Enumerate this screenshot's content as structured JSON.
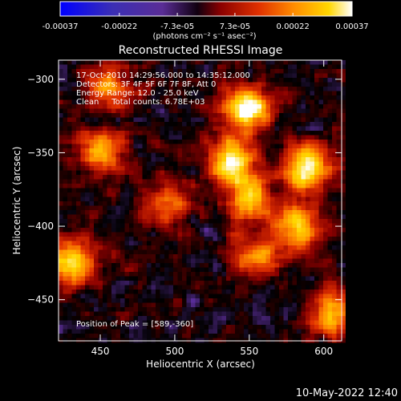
{
  "chart_data": {
    "type": "heatmap",
    "title": "Reconstructed RHESSI Image",
    "xlabel": "Heliocentric X (arcsec)",
    "ylabel": "Heliocentric Y (arcsec)",
    "xlim": [
      422,
      612
    ],
    "ylim": [
      -478,
      -287
    ],
    "x_ticks": [
      "450",
      "500",
      "550",
      "600"
    ],
    "x_tick_values": [
      450,
      500,
      550,
      600
    ],
    "y_ticks": [
      "-300",
      "-350",
      "-400",
      "-450"
    ],
    "y_tick_values": [
      -300,
      -350,
      -400,
      -450
    ],
    "colorbar": {
      "min": -0.00037,
      "max": 0.00037,
      "tick_labels": [
        "-0.00037",
        "-0.00022",
        "-7.3e-05",
        "7.3e-05",
        "0.00022",
        "0.00037"
      ],
      "tick_values": [
        -0.00037,
        -0.00022,
        -7.3e-05,
        7.3e-05,
        0.00022,
        0.00037
      ],
      "unit": "(photons cm⁻² s⁻¹ asec⁻²)",
      "colormap": [
        "#0000ff",
        "#3b2fb4",
        "#5a2d96",
        "#000000",
        "#8b0000",
        "#e03000",
        "#ff8c00",
        "#ffd700",
        "#ffffff"
      ]
    },
    "annotations": [
      "17-Oct-2010 14:29:56.000 to 14:35:12.000",
      "Detectors: 3F 4F 5F 6F 7F 8F, Att 0",
      "Energy Range: 12.0 - 25.0 keV",
      "Clean     Total counts: 6.78E+03"
    ],
    "peak_label": "Position of Peak = [589,-360]",
    "peak": [
      589,
      -360
    ],
    "sources": [
      {
        "x": 548,
        "y": -320,
        "amp": 1.0
      },
      {
        "x": 538,
        "y": -355,
        "amp": 0.9
      },
      {
        "x": 550,
        "y": -380,
        "amp": 0.75
      },
      {
        "x": 589,
        "y": -360,
        "amp": 1.0
      },
      {
        "x": 582,
        "y": -400,
        "amp": 0.8
      },
      {
        "x": 555,
        "y": -420,
        "amp": 0.6
      },
      {
        "x": 455,
        "y": -305,
        "amp": 0.55
      },
      {
        "x": 450,
        "y": -350,
        "amp": 0.75
      },
      {
        "x": 430,
        "y": -425,
        "amp": 0.9
      },
      {
        "x": 495,
        "y": -385,
        "amp": 0.5
      },
      {
        "x": 605,
        "y": -460,
        "amp": 0.7
      }
    ]
  },
  "footer": {
    "date": "10-May-2022 12:40"
  }
}
